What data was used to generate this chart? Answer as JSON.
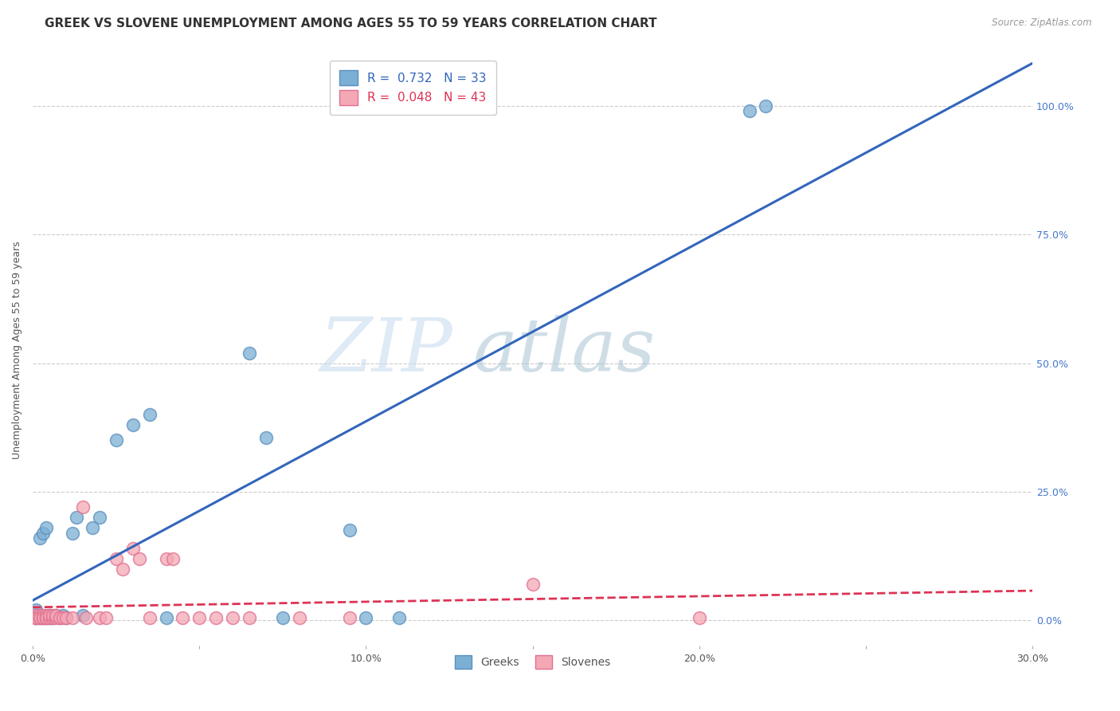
{
  "title": "GREEK VS SLOVENE UNEMPLOYMENT AMONG AGES 55 TO 59 YEARS CORRELATION CHART",
  "source": "Source: ZipAtlas.com",
  "ylabel": "Unemployment Among Ages 55 to 59 years",
  "xlim": [
    0.0,
    0.3
  ],
  "ylim": [
    -0.05,
    1.1
  ],
  "xticks": [
    0.0,
    0.05,
    0.1,
    0.15,
    0.2,
    0.25,
    0.3
  ],
  "xticklabels": [
    "0.0%",
    "",
    "10.0%",
    "",
    "20.0%",
    "",
    "30.0%"
  ],
  "yticks": [
    0.0,
    0.25,
    0.5,
    0.75,
    1.0
  ],
  "yticklabels": [
    "0.0%",
    "25.0%",
    "50.0%",
    "75.0%",
    "100.0%"
  ],
  "greek_color": "#7BAFD4",
  "slovene_color": "#F4A8B5",
  "greek_edge_color": "#5B8FBF",
  "slovene_edge_color": "#E07090",
  "greek_line_color": "#3366BB",
  "slovene_line_color": "#DD3355",
  "background_color": "#FFFFFF",
  "legend_R_greek": "R =  0.732",
  "legend_N_greek": "N = 33",
  "legend_R_slovene": "R =  0.048",
  "legend_N_slovene": "N = 43",
  "greek_points_x": [
    0.001,
    0.001,
    0.001,
    0.002,
    0.002,
    0.003,
    0.003,
    0.004,
    0.004,
    0.005,
    0.005,
    0.006,
    0.007,
    0.008,
    0.009,
    0.01,
    0.012,
    0.013,
    0.015,
    0.018,
    0.02,
    0.025,
    0.03,
    0.035,
    0.04,
    0.065,
    0.07,
    0.075,
    0.095,
    0.1,
    0.11,
    0.215,
    0.22
  ],
  "greek_points_y": [
    0.005,
    0.01,
    0.02,
    0.005,
    0.16,
    0.005,
    0.17,
    0.005,
    0.18,
    0.005,
    0.01,
    0.005,
    0.01,
    0.005,
    0.01,
    0.005,
    0.17,
    0.2,
    0.01,
    0.18,
    0.2,
    0.35,
    0.38,
    0.4,
    0.005,
    0.52,
    0.355,
    0.005,
    0.175,
    0.005,
    0.005,
    0.99,
    1.0
  ],
  "slovene_points_x": [
    0.001,
    0.001,
    0.001,
    0.001,
    0.002,
    0.002,
    0.002,
    0.003,
    0.003,
    0.003,
    0.004,
    0.004,
    0.004,
    0.005,
    0.005,
    0.006,
    0.006,
    0.007,
    0.007,
    0.008,
    0.009,
    0.01,
    0.012,
    0.015,
    0.016,
    0.02,
    0.022,
    0.025,
    0.027,
    0.03,
    0.032,
    0.035,
    0.04,
    0.042,
    0.045,
    0.05,
    0.055,
    0.06,
    0.065,
    0.08,
    0.095,
    0.15,
    0.2
  ],
  "slovene_points_y": [
    0.005,
    0.005,
    0.01,
    0.005,
    0.005,
    0.01,
    0.005,
    0.005,
    0.01,
    0.005,
    0.005,
    0.01,
    0.005,
    0.005,
    0.01,
    0.005,
    0.01,
    0.005,
    0.01,
    0.005,
    0.005,
    0.005,
    0.005,
    0.22,
    0.005,
    0.005,
    0.005,
    0.12,
    0.1,
    0.14,
    0.12,
    0.005,
    0.12,
    0.12,
    0.005,
    0.005,
    0.005,
    0.005,
    0.005,
    0.005,
    0.005,
    0.07,
    0.005
  ],
  "watermark_zip": "ZIP",
  "watermark_atlas": "atlas",
  "title_fontsize": 11,
  "axis_label_fontsize": 9,
  "tick_fontsize": 9,
  "legend_fontsize": 11,
  "right_ytick_color": "#4477CC"
}
